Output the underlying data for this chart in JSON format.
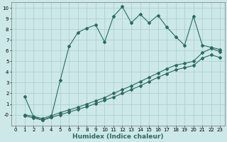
{
  "xlabel": "Humidex (Indice chaleur)",
  "ylabel": "",
  "bg_color": "#cce8e8",
  "grid_color": "#aacccc",
  "line_color": "#2a6b60",
  "line1_x": [
    1,
    2,
    3,
    4,
    5,
    6,
    7,
    8,
    9,
    10,
    11,
    12,
    13,
    14,
    15,
    16,
    17,
    18,
    19,
    20,
    21,
    22,
    23
  ],
  "line1_y": [
    1.7,
    -0.2,
    -0.5,
    -0.2,
    3.2,
    6.4,
    7.7,
    8.1,
    8.4,
    6.8,
    9.2,
    10.1,
    8.6,
    9.4,
    8.6,
    9.3,
    8.2,
    7.3,
    6.5,
    9.2,
    6.5,
    6.3,
    6.1
  ],
  "line2_x": [
    1,
    2,
    3,
    4,
    5,
    6,
    7,
    8,
    9,
    10,
    11,
    12,
    13,
    14,
    15,
    16,
    17,
    18,
    19,
    20,
    21,
    22,
    23
  ],
  "line2_y": [
    0.0,
    -0.15,
    -0.35,
    -0.1,
    0.2,
    0.45,
    0.7,
    1.0,
    1.3,
    1.6,
    2.0,
    2.35,
    2.7,
    3.1,
    3.5,
    3.9,
    4.3,
    4.65,
    4.8,
    5.0,
    5.8,
    6.2,
    5.9
  ],
  "line3_x": [
    1,
    2,
    3,
    4,
    5,
    6,
    7,
    8,
    9,
    10,
    11,
    12,
    13,
    14,
    15,
    16,
    17,
    18,
    19,
    20,
    21,
    22,
    23
  ],
  "line3_y": [
    -0.1,
    -0.3,
    -0.5,
    -0.25,
    0.0,
    0.25,
    0.5,
    0.75,
    1.05,
    1.35,
    1.65,
    2.0,
    2.35,
    2.7,
    3.1,
    3.5,
    3.85,
    4.2,
    4.4,
    4.6,
    5.3,
    5.6,
    5.35
  ],
  "ylim": [
    -1.0,
    10.5
  ],
  "xlim": [
    -0.5,
    23.5
  ],
  "yticks": [
    0,
    1,
    2,
    3,
    4,
    5,
    6,
    7,
    8,
    9,
    10
  ],
  "xticks": [
    0,
    1,
    2,
    3,
    4,
    5,
    6,
    7,
    8,
    9,
    10,
    11,
    12,
    13,
    14,
    15,
    16,
    17,
    18,
    19,
    20,
    21,
    22,
    23
  ],
  "marker": "D",
  "markersize": 2.0,
  "linewidth": 0.8,
  "tick_fontsize": 5.0,
  "xlabel_fontsize": 6.5,
  "title_fontsize": 6
}
